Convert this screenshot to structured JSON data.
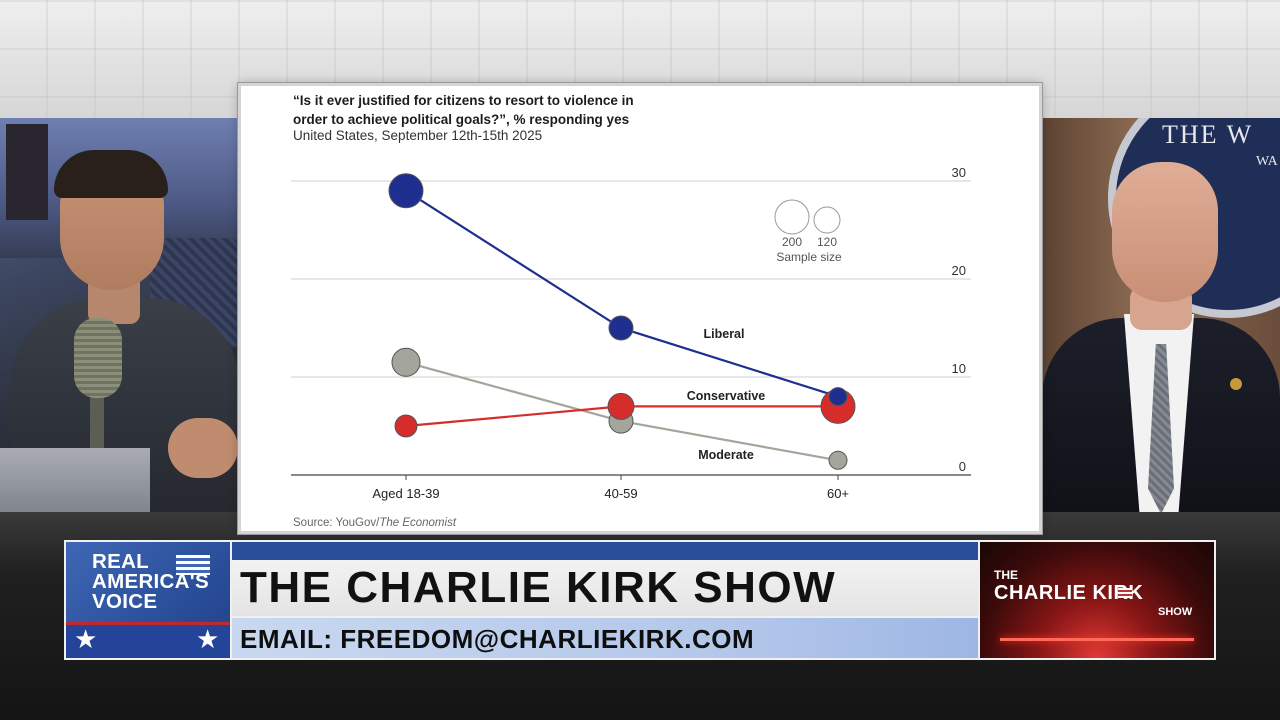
{
  "chart": {
    "title": "“Is it ever justified for citizens to resort to violence in order to achieve political goals?”, % responding yes",
    "subtitle": "United States, September 12th-15th 2025",
    "source_prefix": "Source: YouGov/",
    "source_italic": "The Economist",
    "sample_size": {
      "values": [
        "200",
        "120"
      ],
      "label": "Sample size"
    }
  },
  "chart_data": {
    "type": "scatter",
    "categories": [
      "Aged 18-39",
      "40-59",
      "60+"
    ],
    "ylim": [
      0,
      30
    ],
    "yticks": [
      0,
      10,
      20,
      30
    ],
    "y_axis_side": "right",
    "grid": true,
    "series": [
      {
        "name": "Liberal",
        "color": "#1f2f8f",
        "values": [
          29,
          15,
          8
        ],
        "sizes": [
          200,
          150,
          120
        ]
      },
      {
        "name": "Conservative",
        "color": "#d62d2b",
        "values": [
          5,
          7,
          7
        ],
        "sizes": [
          140,
          160,
          200
        ]
      },
      {
        "name": "Moderate",
        "color": "#a5a69b",
        "values": [
          11.5,
          5.5,
          1.5
        ],
        "sizes": [
          170,
          150,
          120
        ]
      }
    ],
    "sample_size_legend": [
      200,
      120
    ]
  },
  "lower_third": {
    "network_logo": "REAL\nAMERICA'S\nVOICE",
    "show_title": "THE CHARLIE KIRK SHOW",
    "email": "EMAIL: FREEDOM@CHARLIEKIRK.COM",
    "show_logo_the": "THE",
    "show_logo_name": "CHARLIE  KIRK",
    "show_logo_show": "SHOW",
    "star": "★"
  },
  "feed_right": {
    "seal_text": "THE W",
    "seal_text2": "WA"
  },
  "colors": {
    "network_blue": "#2b4f9a",
    "show_red": "#c02a2e"
  }
}
